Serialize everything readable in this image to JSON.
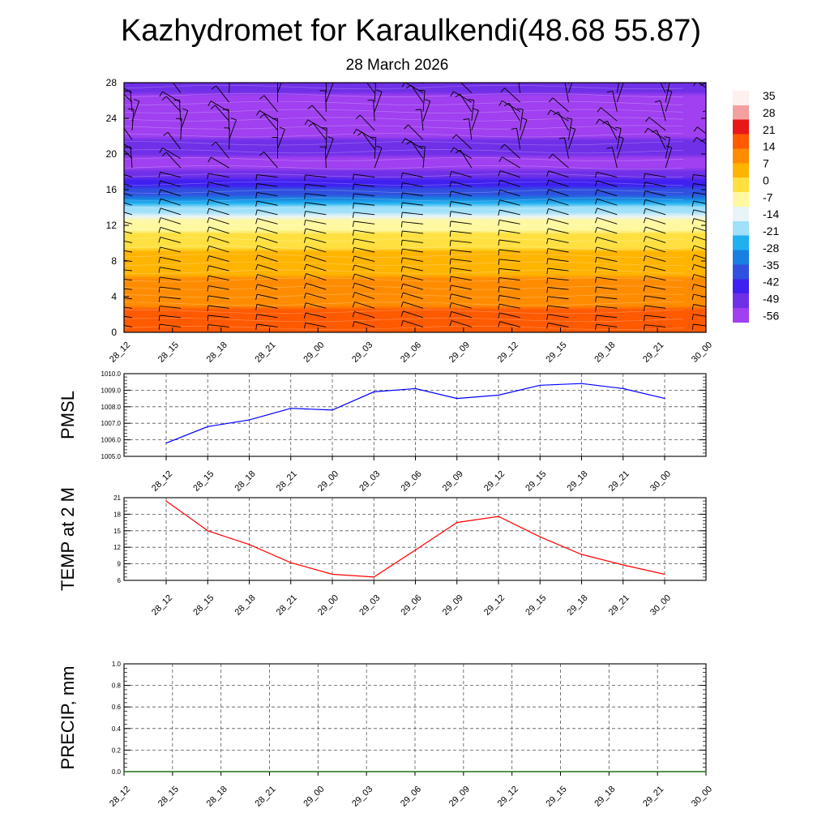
{
  "title": "Kazhydromet for Karaulkendi(48.68 55.87)",
  "subtitle": "28 March 2026",
  "time_labels": [
    "28_12",
    "28_15",
    "28_18",
    "28_21",
    "29_00",
    "29_03",
    "29_06",
    "29_09",
    "29_12",
    "29_15",
    "29_18",
    "29_21",
    "30_00"
  ],
  "chart_data": [
    {
      "type": "heatmap",
      "name": "temperature-height-section",
      "y_ticks": [
        0,
        4,
        8,
        12,
        16,
        20,
        24,
        28
      ],
      "ylim": [
        0,
        28
      ],
      "x": [
        "28_12",
        "28_15",
        "28_18",
        "28_21",
        "29_00",
        "29_03",
        "29_06",
        "29_09",
        "29_12",
        "29_15",
        "29_18",
        "29_21",
        "30_00"
      ],
      "colorbar_labels": [
        "35",
        "28",
        "21",
        "14",
        "7",
        "0",
        "-7",
        "-14",
        "-21",
        "-28",
        "-35",
        "-42",
        "-49",
        "-56"
      ],
      "colorbar_values": [
        35,
        28,
        21,
        14,
        7,
        0,
        -7,
        -14,
        -21,
        -28,
        -35,
        -42,
        -49,
        -56
      ],
      "level_temperature_profile": [
        {
          "level": 0,
          "value": 18
        },
        {
          "level": 3,
          "value": 14
        },
        {
          "level": 7,
          "value": 7
        },
        {
          "level": 10,
          "value": 0
        },
        {
          "level": 12.3,
          "value": -7
        },
        {
          "level": 13,
          "value": -14
        },
        {
          "level": 15.5,
          "value": -35
        },
        {
          "level": 18.5,
          "value": -56
        },
        {
          "level": 21,
          "value": -50
        },
        {
          "level": 24,
          "value": -62
        },
        {
          "level": 28,
          "value": -50
        }
      ],
      "colors": [
        "#fff0f0",
        "#f4a0a0",
        "#e81818",
        "#ff5a00",
        "#ff8c00",
        "#ffb400",
        "#ffe040",
        "#fff8a0",
        "#e8f4f8",
        "#a0e0f8",
        "#20b0f0",
        "#1880e0",
        "#3050e0",
        "#4020f0",
        "#7030e8",
        "#a040f0"
      ],
      "wind_barbs": true
    },
    {
      "type": "line",
      "name": "PMSL",
      "ylabel": "PMSL",
      "ylim": [
        1005.0,
        1010.0
      ],
      "y_ticks": [
        "1005.0",
        "1006.0",
        "1007.0",
        "1008.0",
        "1009.0",
        "1010.0"
      ],
      "x": [
        "28_12",
        "28_15",
        "28_18",
        "28_21",
        "29_00",
        "29_03",
        "29_06",
        "29_09",
        "29_12",
        "29_15",
        "29_18",
        "29_21",
        "30_00"
      ],
      "values": [
        1005.8,
        1006.8,
        1007.2,
        1007.9,
        1007.8,
        1008.9,
        1009.1,
        1008.5,
        1008.7,
        1009.3,
        1009.4,
        1009.1,
        1008.5
      ],
      "color": "#0000ff",
      "grid": true
    },
    {
      "type": "line",
      "name": "TEMP at 2 M",
      "ylabel": "TEMP at 2 M",
      "ylim": [
        6,
        21
      ],
      "y_ticks": [
        "6",
        "9",
        "12",
        "15",
        "18",
        "21"
      ],
      "x": [
        "28_12",
        "28_15",
        "28_18",
        "28_21",
        "29_00",
        "29_03",
        "29_06",
        "29_09",
        "29_12",
        "29_15",
        "29_18",
        "29_21",
        "30_00"
      ],
      "values": [
        20.4,
        15.0,
        12.5,
        9.2,
        7.1,
        6.6,
        11.5,
        16.5,
        17.6,
        13.9,
        10.7,
        8.8,
        7.1
      ],
      "color": "#ff0000",
      "grid": true
    },
    {
      "type": "line",
      "name": "PRECIP, mm",
      "ylabel": "PRECIP, mm",
      "ylim": [
        0.0,
        1.0
      ],
      "y_ticks": [
        "0.0",
        "0.2",
        "0.4",
        "0.6",
        "0.8",
        "1.0"
      ],
      "x": [
        "28_12",
        "28_15",
        "28_18",
        "28_21",
        "29_00",
        "29_03",
        "29_06",
        "29_09",
        "29_12",
        "29_15",
        "29_18",
        "29_21",
        "30_00"
      ],
      "values": [
        0,
        0,
        0,
        0,
        0,
        0,
        0,
        0,
        0,
        0,
        0,
        0,
        0
      ],
      "color": "#006400",
      "grid": true
    }
  ]
}
